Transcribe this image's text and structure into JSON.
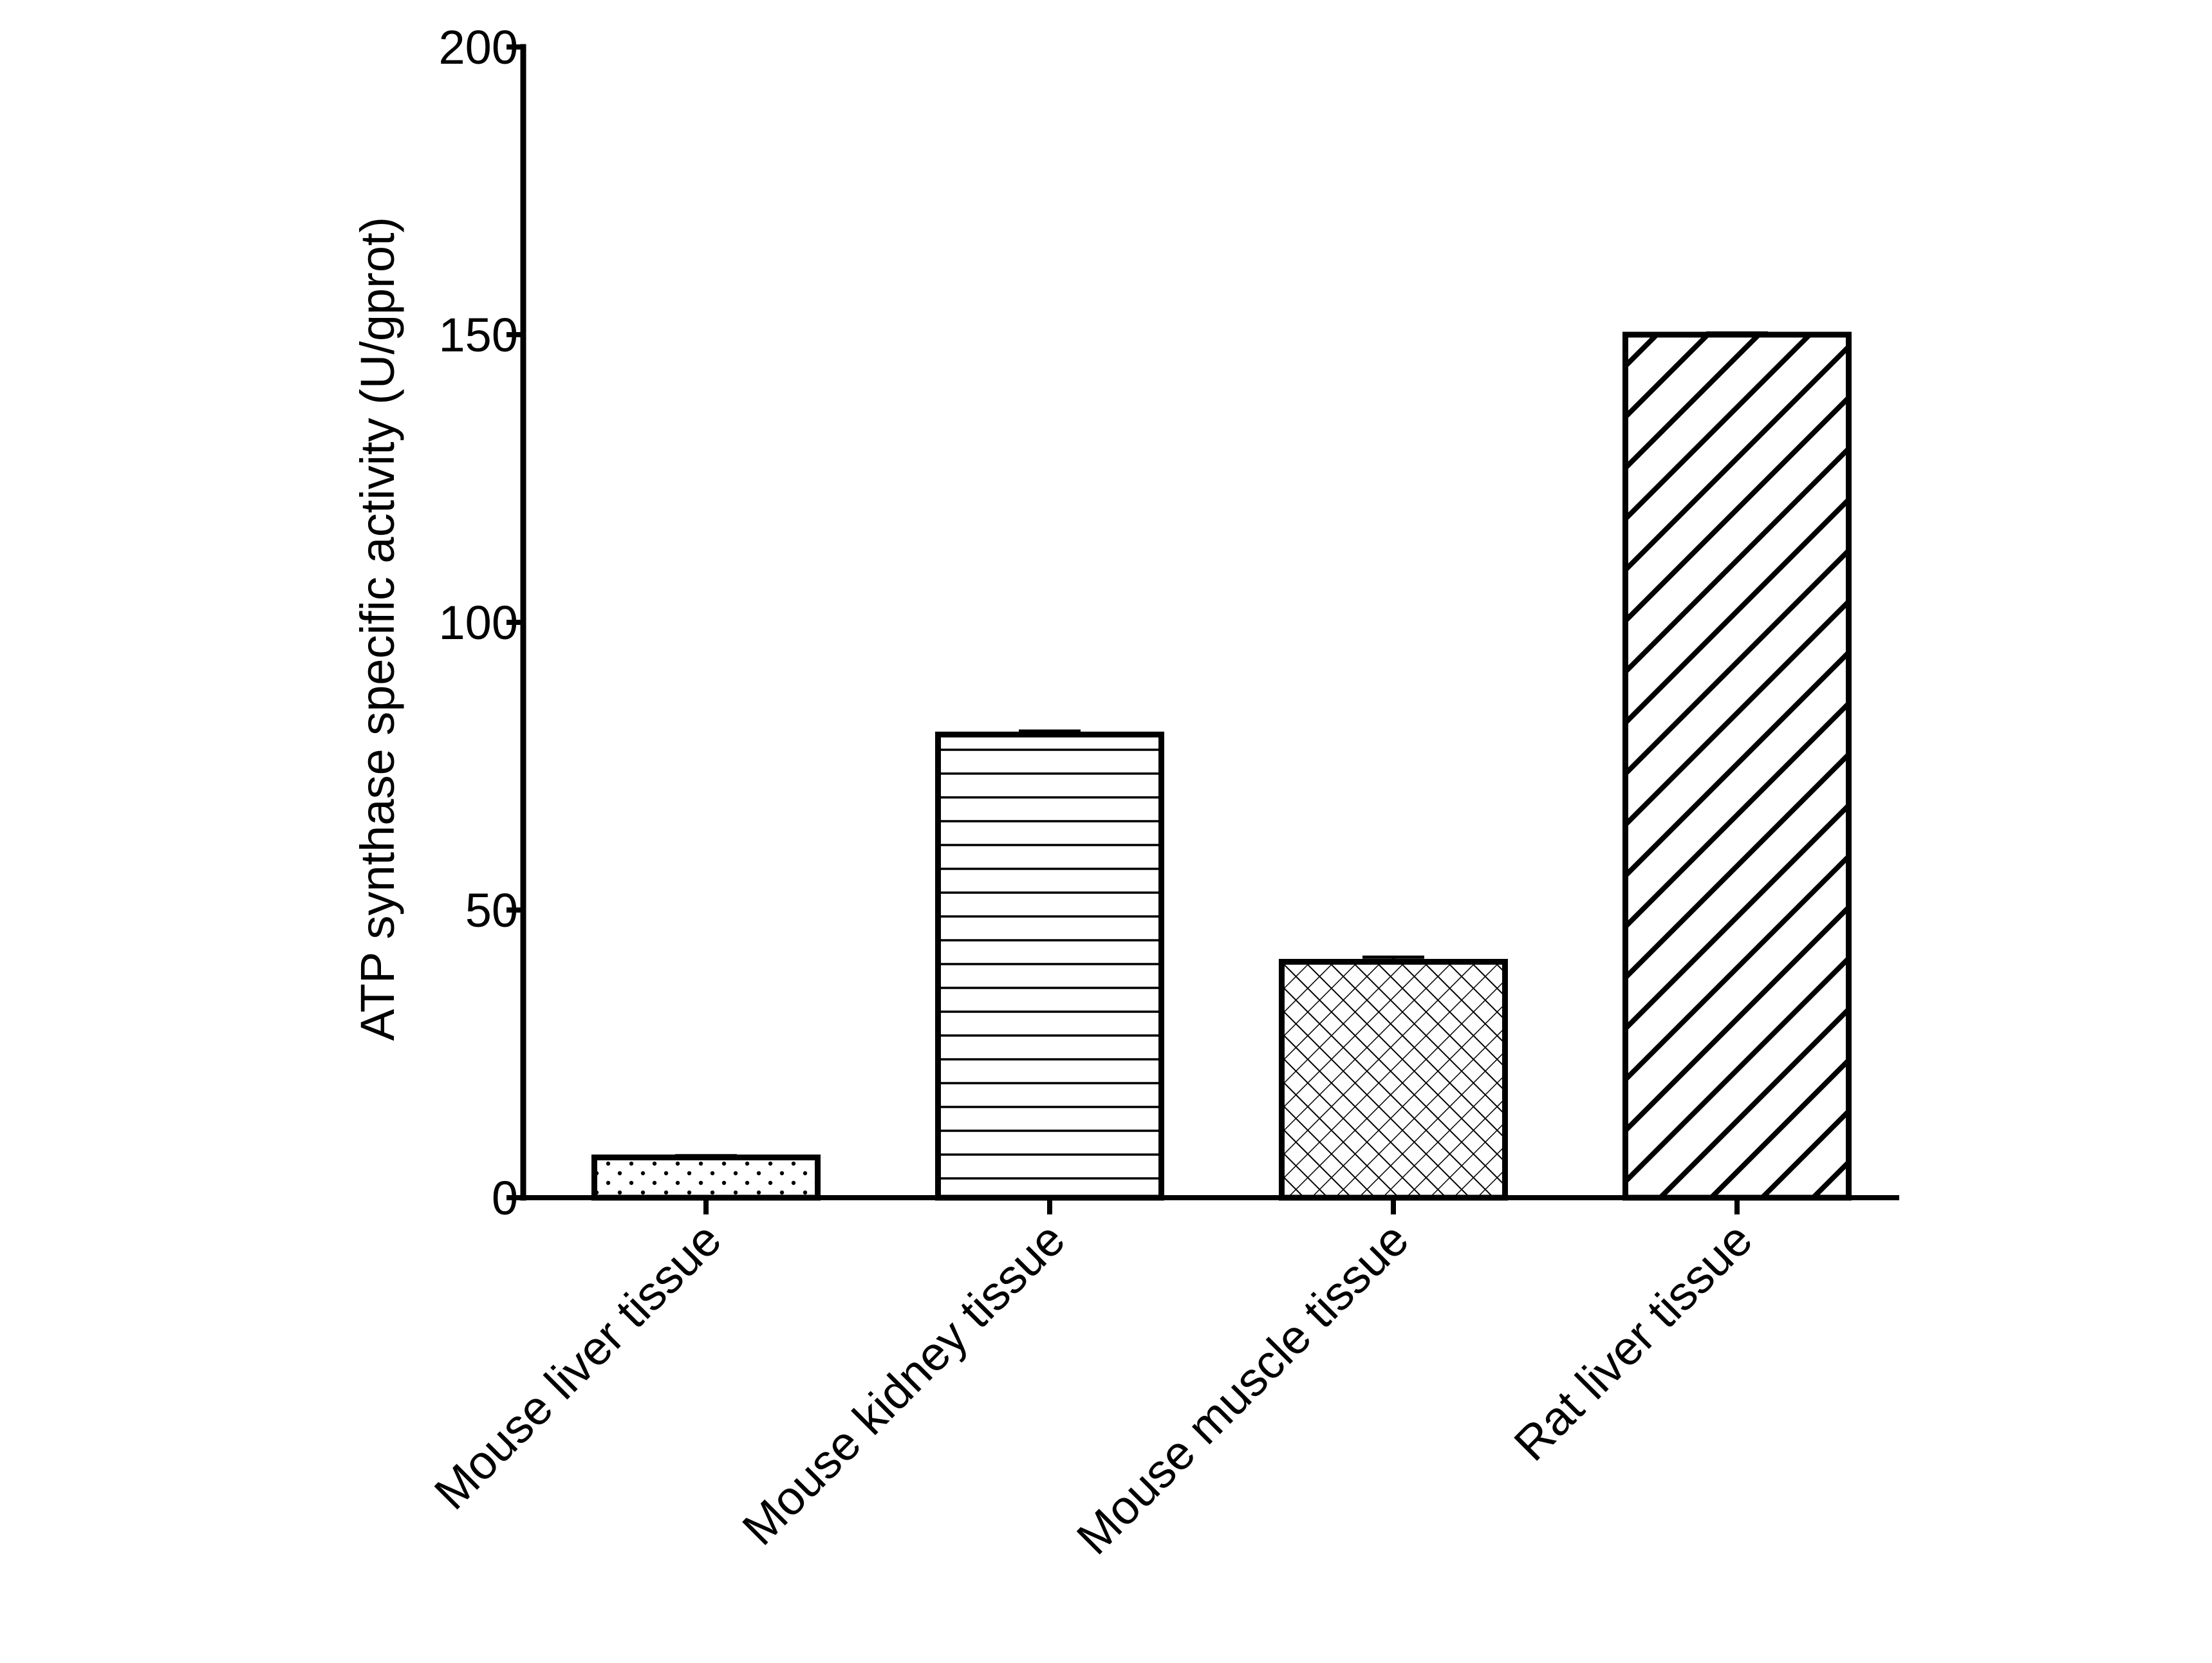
{
  "chart_data": {
    "type": "bar",
    "title": "",
    "xlabel": "",
    "ylabel": "ATP synthase specific activity (U/gprot)",
    "ylim": [
      0,
      200
    ],
    "yticks": [
      0,
      50,
      100,
      150,
      200
    ],
    "ytick_labels": [
      "0",
      "50",
      "100",
      "150",
      "200"
    ],
    "categories": [
      "Mouse liver tissue",
      "Mouse kidney tissue",
      "Mouse muscle tissue",
      "Rat liver tissue"
    ],
    "values": [
      7,
      80.5,
      41,
      150
    ],
    "errors": [
      0.3,
      0.6,
      0.8,
      0.3
    ],
    "patterns": [
      "dots",
      "horizontal-lines",
      "crosshatch",
      "diagonal-stripes"
    ],
    "grid": false,
    "legend": "none",
    "colors": {
      "bar_fill": "#ffffff",
      "stroke": "#000000"
    }
  }
}
